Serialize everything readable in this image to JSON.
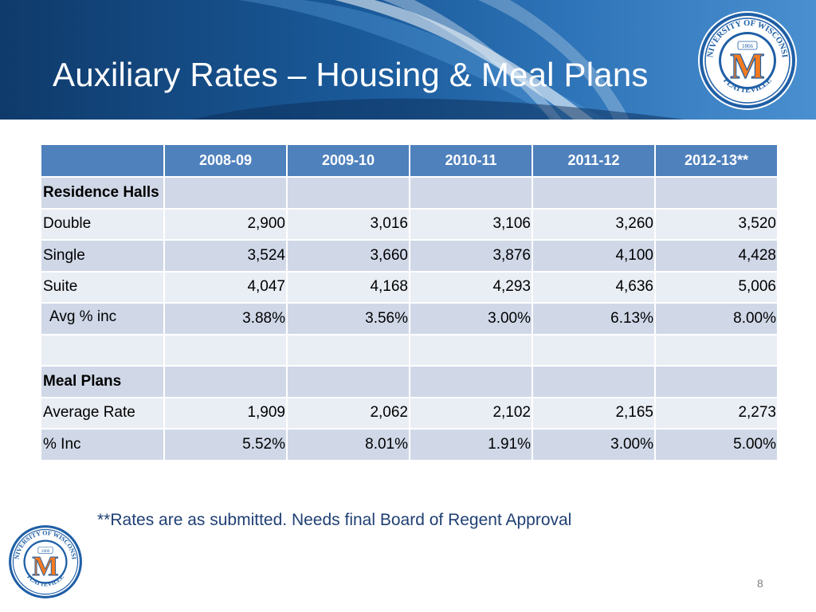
{
  "slide": {
    "title": "Auxiliary Rates – Housing & Meal Plans",
    "footnote": "**Rates are as submitted.  Needs final Board of Regent Approval",
    "page_number": "8"
  },
  "seal": {
    "top_text": "UNIVERSITY OF WISCONSIN",
    "bottom_text": "PLATTEVILLE",
    "year": "1866",
    "letter": "M"
  },
  "table": {
    "headers": [
      "",
      "2008-09",
      "2009-10",
      "2010-11",
      "2011-12",
      "2012-13**"
    ],
    "rows": [
      {
        "label": "Residence Halls",
        "values": [
          "",
          "",
          "",
          "",
          ""
        ]
      },
      {
        "label": "Double",
        "values": [
          "2,900",
          "3,016",
          "3,106",
          "3,260",
          "3,520"
        ]
      },
      {
        "label": "Single",
        "values": [
          "3,524",
          "3,660",
          "3,876",
          "4,100",
          "4,428"
        ]
      },
      {
        "label": "Suite",
        "values": [
          "4,047",
          "4,168",
          "4,293",
          "4,636",
          "5,006"
        ]
      },
      {
        "label": "Avg % inc",
        "values": [
          "3.88%",
          "3.56%",
          "3.00%",
          "6.13%",
          "8.00%"
        ]
      },
      {
        "label": "",
        "values": [
          "",
          "",
          "",
          "",
          ""
        ]
      },
      {
        "label": "Meal Plans",
        "values": [
          "",
          "",
          "",
          "",
          ""
        ]
      },
      {
        "label": "Average Rate",
        "values": [
          "1,909",
          "2,062",
          "2,102",
          "2,165",
          "2,273"
        ]
      },
      {
        "label": "% Inc",
        "values": [
          "5.52%",
          "8.01%",
          "1.91%",
          "3.00%",
          "5.00%"
        ]
      }
    ]
  },
  "colors": {
    "header_blue": "#4f81bd",
    "row_dark": "#d0d8e8",
    "row_light": "#e9edf4",
    "seal_orange": "#f47b20",
    "seal_blue": "#1f5fa6",
    "footnote_text": "#1f3f73"
  }
}
